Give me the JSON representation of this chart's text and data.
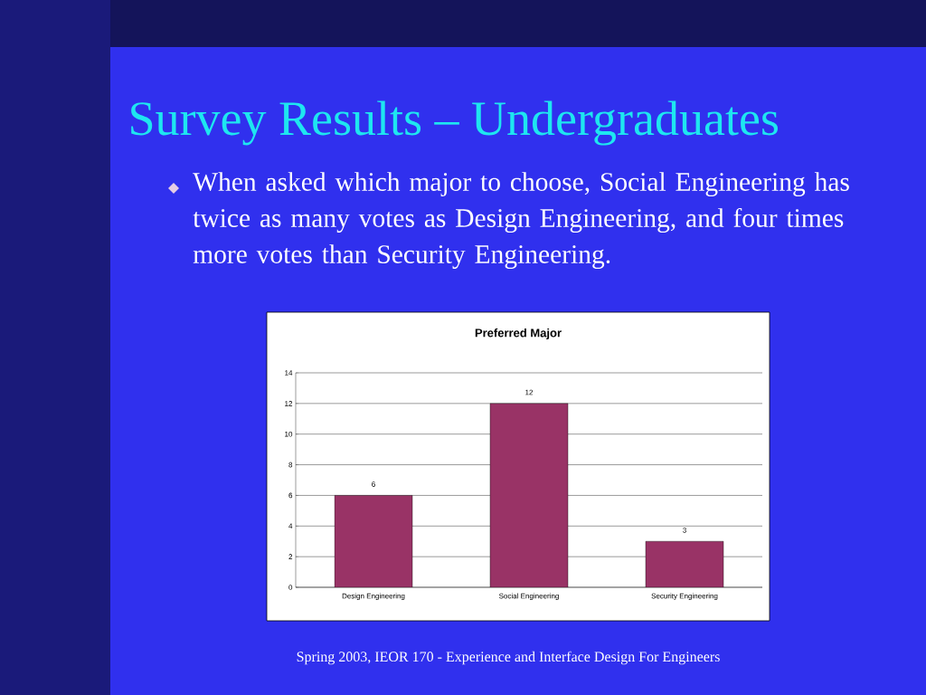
{
  "chart_data": {
    "type": "bar",
    "title": "Preferred Major",
    "categories": [
      "Design Engineering",
      "Social Engineering",
      "Security Engineering"
    ],
    "values": [
      6,
      12,
      3
    ],
    "color": "#993366",
    "ylim": [
      0,
      14
    ],
    "yticks": [
      0,
      2,
      4,
      6,
      8,
      10,
      12,
      14
    ],
    "grid": "y",
    "data_labels": true,
    "annotations": [
      "Survey Results – Undergraduates",
      "When asked which major to choose, Social Engineering has twice as many votes as Design Engineering, and four times more votes than Security Engineering.",
      "Spring 2003, IEOR 170 - Experience and Interface Design For Engineers"
    ]
  }
}
